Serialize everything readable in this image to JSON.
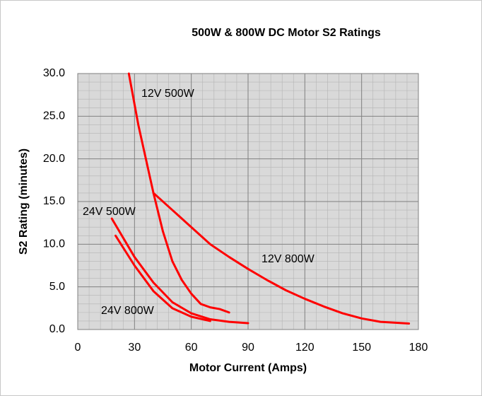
{
  "chart_data": {
    "type": "line",
    "title": "500W & 800W DC Motor S2 Ratings",
    "xlabel": "Motor Current (Amps)",
    "ylabel": "S2 Rating (minutes)",
    "xlim": [
      0,
      180
    ],
    "xticks": [
      0,
      30,
      60,
      90,
      120,
      150,
      180
    ],
    "ylim": [
      0,
      30
    ],
    "yticks": [
      {
        "value": 0,
        "label": "0.0"
      },
      {
        "value": 5,
        "label": "5.0"
      },
      {
        "value": 10,
        "label": "10.0"
      },
      {
        "value": 15,
        "label": "15.0"
      },
      {
        "value": 20,
        "label": "20.0"
      },
      {
        "value": 25,
        "label": "25.0"
      },
      {
        "value": 30,
        "label": "30.0"
      }
    ],
    "grid": true,
    "series": [
      {
        "name": "12V 500W",
        "color": "#ff0000",
        "x": [
          27,
          32,
          36,
          40,
          45,
          50,
          55,
          60,
          65,
          70,
          75,
          80
        ],
        "values": [
          30,
          24,
          20,
          16,
          11.5,
          8,
          5.8,
          4.2,
          3,
          2.6,
          2.4,
          2
        ]
      },
      {
        "name": "12V 800W",
        "color": "#ff0000",
        "x": [
          40,
          50,
          60,
          70,
          80,
          90,
          100,
          110,
          120,
          130,
          140,
          150,
          160,
          175
        ],
        "values": [
          16,
          14,
          12,
          10,
          8.5,
          7.1,
          5.8,
          4.6,
          3.6,
          2.7,
          1.9,
          1.3,
          0.9,
          0.7
        ]
      },
      {
        "name": "24V 500W",
        "color": "#ff0000",
        "x": [
          18,
          30,
          40,
          50,
          60,
          70,
          80,
          90
        ],
        "values": [
          13,
          8.5,
          5.5,
          3.2,
          1.9,
          1.2,
          0.9,
          0.75
        ]
      },
      {
        "name": "24V 800W",
        "color": "#ff0000",
        "x": [
          20,
          30,
          40,
          50,
          60,
          70
        ],
        "values": [
          11,
          7.5,
          4.5,
          2.5,
          1.5,
          1.0
        ]
      }
    ]
  }
}
